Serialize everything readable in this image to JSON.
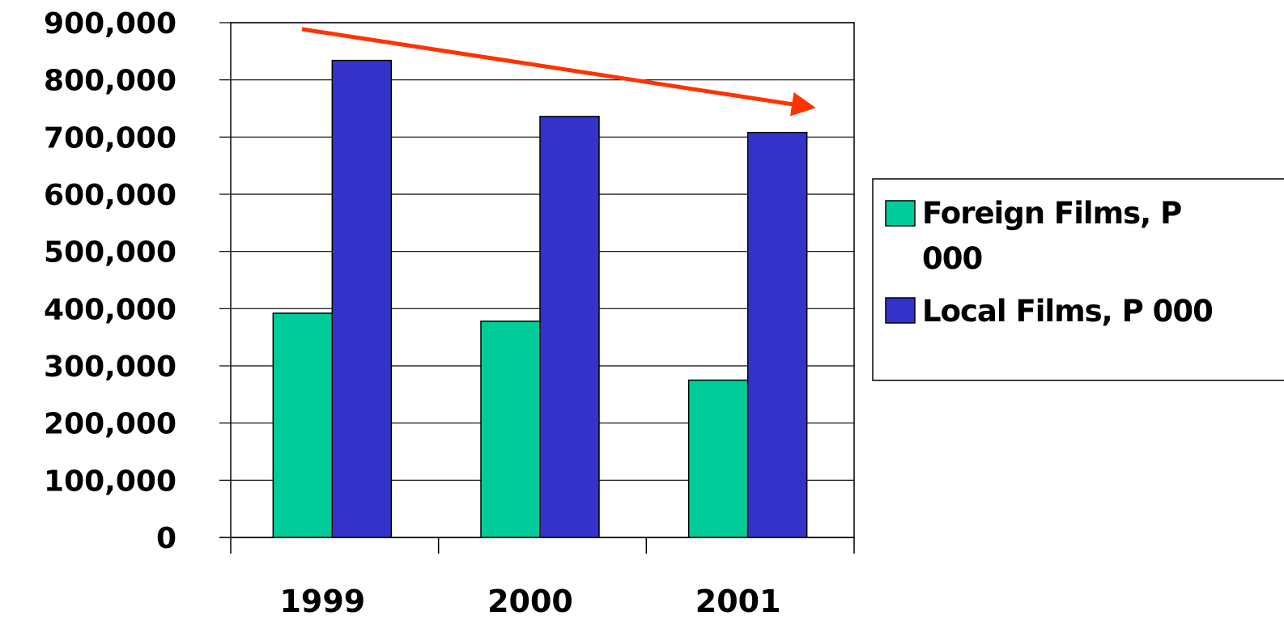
{
  "chart_data": {
    "type": "bar",
    "title": "",
    "xlabel": "",
    "ylabel": "",
    "categories": [
      "1999",
      "2000",
      "2001"
    ],
    "series": [
      {
        "name": "Foreign Films, P 000",
        "legend_lines": [
          "Foreign Films, P",
          "000"
        ],
        "color": "#00CC99",
        "values": [
          392000,
          378000,
          275000
        ]
      },
      {
        "name": "Local Films, P 000",
        "legend_lines": [
          "Local Films, P 000"
        ],
        "color": "#3333CC",
        "values": [
          834000,
          736000,
          708000
        ]
      }
    ],
    "ylim": [
      0,
      900000
    ],
    "yticks": [
      0,
      100000,
      200000,
      300000,
      400000,
      500000,
      600000,
      700000,
      800000,
      900000
    ],
    "ytick_labels": [
      "0",
      "100,000",
      "200,000",
      "300,000",
      "400,000",
      "500,000",
      "600,000",
      "700,000",
      "800,000",
      "900,000"
    ],
    "grid": true,
    "legend_position": "right",
    "annotation": {
      "type": "arrow",
      "meaning": "declining trend",
      "color": "#FF3300"
    }
  }
}
